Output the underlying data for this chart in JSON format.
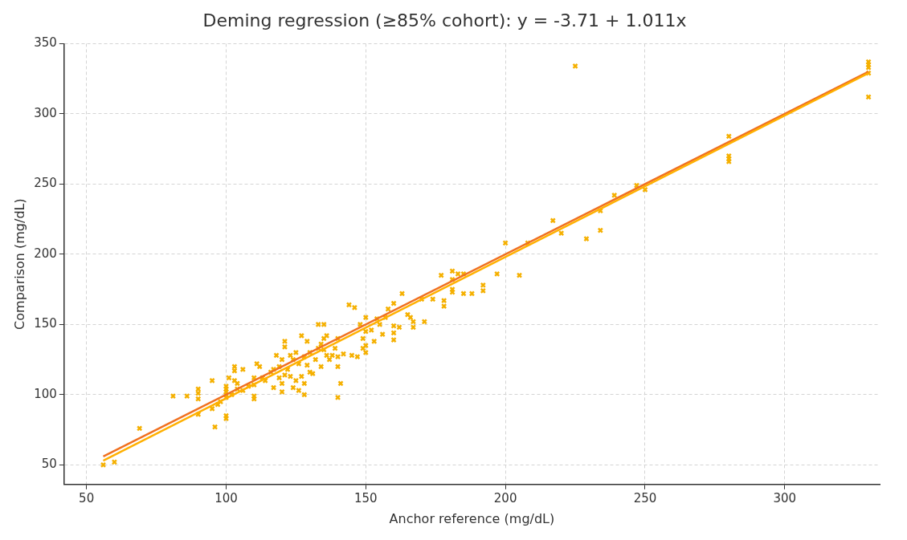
{
  "chart_data": {
    "type": "scatter",
    "title": "Deming regression (≥85% cohort): y = -3.71 + 1.011x",
    "xlabel": "Anchor reference (mg/dL)",
    "ylabel": "Comparison (mg/dL)",
    "xlim": [
      42,
      334
    ],
    "ylim": [
      36,
      350
    ],
    "xticks": [
      50,
      100,
      150,
      200,
      250,
      300
    ],
    "yticks": [
      50,
      100,
      150,
      200,
      250,
      300,
      350
    ],
    "grid": true,
    "marker": "cross",
    "series": [
      {
        "color": "#f5b000",
        "x": [
          56,
          60,
          69,
          81,
          86,
          90,
          90,
          90,
          90,
          95,
          95,
          96,
          97,
          98,
          100,
          100,
          100,
          100,
          100,
          100,
          100,
          101,
          102,
          103,
          103,
          103,
          104,
          104,
          106,
          106,
          108,
          110,
          110,
          110,
          110,
          111,
          112,
          113,
          114,
          116,
          117,
          117,
          118,
          119,
          119,
          120,
          120,
          120,
          121,
          121,
          121,
          122,
          123,
          123,
          124,
          124,
          125,
          125,
          126,
          126,
          127,
          127,
          128,
          128,
          128,
          129,
          129,
          130,
          130,
          131,
          132,
          133,
          133,
          134,
          134,
          135,
          135,
          135,
          136,
          136,
          137,
          138,
          139,
          140,
          140,
          140,
          140,
          141,
          142,
          144,
          145,
          146,
          147,
          148,
          149,
          149,
          150,
          150,
          150,
          150,
          152,
          153,
          154,
          155,
          156,
          157,
          158,
          160,
          160,
          160,
          160,
          162,
          163,
          165,
          166,
          167,
          167,
          170,
          171,
          174,
          177,
          178,
          178,
          181,
          181,
          181,
          181,
          183,
          185,
          185,
          188,
          192,
          192,
          197,
          200,
          205,
          208,
          217,
          220,
          225,
          229,
          234,
          234,
          239,
          247,
          250,
          280,
          280,
          280,
          280,
          330,
          330,
          330,
          330,
          330
        ],
        "values": [
          50,
          52,
          76,
          99,
          99,
          101,
          104,
          97,
          86,
          110,
          90,
          77,
          93,
          95,
          85,
          83,
          98,
          100,
          102,
          104,
          106,
          112,
          100,
          120,
          117,
          110,
          108,
          104,
          118,
          103,
          106,
          97,
          99,
          107,
          112,
          122,
          120,
          112,
          110,
          116,
          105,
          118,
          128,
          112,
          120,
          125,
          102,
          108,
          114,
          134,
          138,
          118,
          128,
          113,
          105,
          125,
          130,
          110,
          103,
          122,
          113,
          142,
          127,
          100,
          108,
          138,
          121,
          130,
          116,
          115,
          125,
          150,
          133,
          136,
          120,
          150,
          140,
          132,
          142,
          128,
          125,
          128,
          133,
          140,
          98,
          127,
          120,
          108,
          129,
          164,
          128,
          162,
          127,
          150,
          133,
          140,
          145,
          155,
          135,
          130,
          146,
          138,
          154,
          150,
          143,
          155,
          161,
          139,
          165,
          144,
          149,
          148,
          172,
          157,
          155,
          152,
          148,
          168,
          152,
          168,
          185,
          163,
          167,
          182,
          175,
          173,
          188,
          186,
          172,
          186,
          172,
          178,
          174,
          186,
          208,
          185,
          208,
          224,
          215,
          334,
          211,
          231,
          217,
          242,
          249,
          246,
          284,
          270,
          268,
          266,
          337,
          335,
          333,
          329,
          312
        ]
      },
      {
        "type": "line",
        "color": "#ffb000",
        "marker": "none",
        "x": [
          56,
          330
        ],
        "values": [
          53,
          329
        ]
      },
      {
        "type": "line",
        "color": "#f07020",
        "marker": "none",
        "x": [
          56,
          330
        ],
        "values": [
          56,
          330
        ]
      }
    ]
  }
}
